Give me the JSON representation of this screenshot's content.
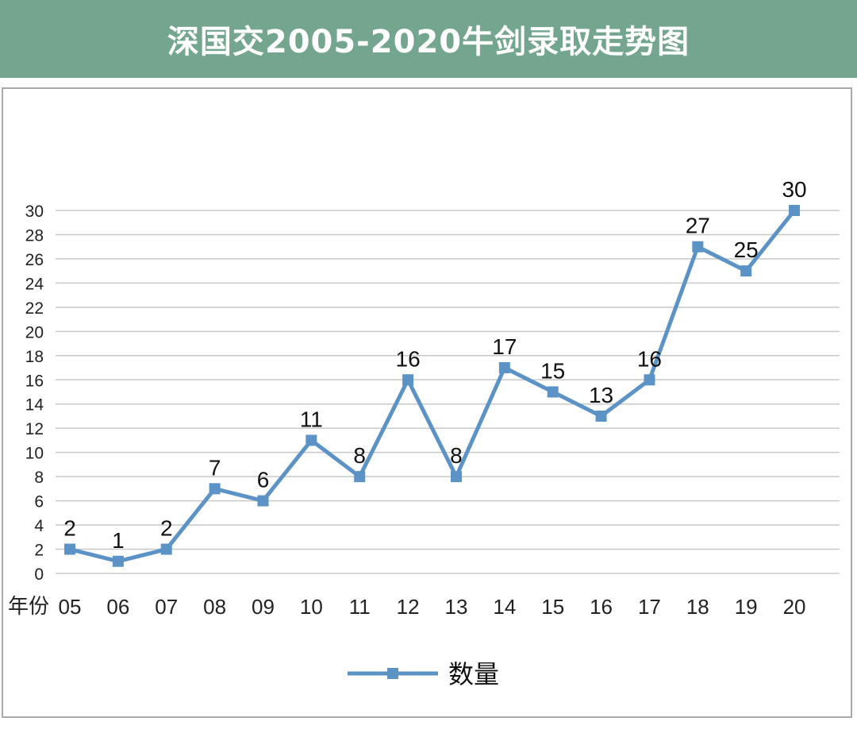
{
  "header": {
    "title": "深国交2005-2020牛剑录取走势图"
  },
  "chart_data": {
    "type": "line",
    "title": "深国交2005-2020牛剑录取走势图",
    "xlabel": "年份",
    "ylabel": "",
    "categories": [
      "05",
      "06",
      "07",
      "08",
      "09",
      "10",
      "11",
      "12",
      "13",
      "14",
      "15",
      "16",
      "17",
      "18",
      "19",
      "20"
    ],
    "series": [
      {
        "name": "数量",
        "values": [
          2,
          1,
          2,
          7,
          6,
          11,
          8,
          16,
          8,
          17,
          15,
          13,
          16,
          27,
          25,
          30
        ],
        "color": "#5b93c6"
      }
    ],
    "ylim": [
      0,
      30
    ],
    "yticks": [
      0,
      2,
      4,
      6,
      8,
      10,
      12,
      14,
      16,
      18,
      20,
      22,
      24,
      26,
      28,
      30
    ],
    "grid": true,
    "legend": "bottom",
    "data_labels": true
  }
}
